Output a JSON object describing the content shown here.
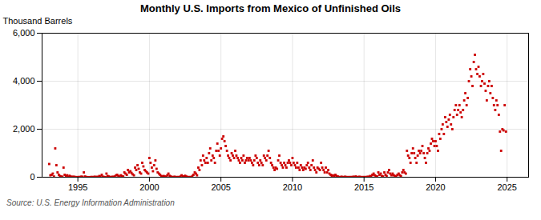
{
  "chart_data": {
    "type": "scatter",
    "title": "Monthly U.S. Imports from Mexico of Unfinished Oils",
    "ylabel": "Thousand Barrels",
    "source": "Source: U.S. Energy Information Administration",
    "color": "#CC0000",
    "marker": "square",
    "grid": true,
    "xlim": [
      1992.5,
      2026.5
    ],
    "xticks": [
      1995,
      2000,
      2005,
      2010,
      2015,
      2020,
      2025
    ],
    "ylim": [
      0,
      6000
    ],
    "yticks": [
      0,
      {
        "value": 2000,
        "label": "2,000"
      },
      {
        "value": 4000,
        "label": "4,000"
      },
      {
        "value": 6000,
        "label": "6,000"
      }
    ],
    "x": [
      1993.0,
      1993.08,
      1993.17,
      1993.25,
      1993.33,
      1993.42,
      1993.5,
      1993.58,
      1993.67,
      1993.75,
      1993.83,
      1993.92,
      1994.0,
      1994.08,
      1994.17,
      1994.25,
      1994.33,
      1994.42,
      1994.5,
      1994.58,
      1994.67,
      1994.75,
      1994.83,
      1994.92,
      1995.0,
      1995.08,
      1995.17,
      1995.25,
      1995.33,
      1995.42,
      1995.5,
      1995.58,
      1995.67,
      1995.75,
      1995.83,
      1995.92,
      1996.0,
      1996.08,
      1996.17,
      1996.25,
      1996.33,
      1996.42,
      1996.5,
      1996.58,
      1996.67,
      1996.75,
      1996.83,
      1996.92,
      1997.0,
      1997.08,
      1997.17,
      1997.25,
      1997.33,
      1997.42,
      1997.5,
      1997.58,
      1997.67,
      1997.75,
      1997.83,
      1997.92,
      1998.0,
      1998.08,
      1998.17,
      1998.25,
      1998.33,
      1998.42,
      1998.5,
      1998.58,
      1998.67,
      1998.75,
      1998.83,
      1998.92,
      1999.0,
      1999.08,
      1999.17,
      1999.25,
      1999.33,
      1999.42,
      1999.5,
      1999.58,
      1999.67,
      1999.75,
      1999.83,
      1999.92,
      2000.0,
      2000.08,
      2000.17,
      2000.25,
      2000.33,
      2000.42,
      2000.5,
      2000.58,
      2000.67,
      2000.75,
      2000.83,
      2000.92,
      2001.0,
      2001.08,
      2001.17,
      2001.25,
      2001.33,
      2001.42,
      2001.5,
      2001.58,
      2001.67,
      2001.75,
      2001.83,
      2001.92,
      2002.0,
      2002.08,
      2002.17,
      2002.25,
      2002.33,
      2002.42,
      2002.5,
      2002.58,
      2002.67,
      2002.75,
      2002.83,
      2002.92,
      2003.0,
      2003.08,
      2003.17,
      2003.25,
      2003.33,
      2003.42,
      2003.5,
      2003.58,
      2003.67,
      2003.75,
      2003.83,
      2003.92,
      2004.0,
      2004.08,
      2004.17,
      2004.25,
      2004.33,
      2004.42,
      2004.5,
      2004.58,
      2004.67,
      2004.75,
      2004.83,
      2004.92,
      2005.0,
      2005.08,
      2005.17,
      2005.25,
      2005.33,
      2005.42,
      2005.5,
      2005.58,
      2005.67,
      2005.75,
      2005.83,
      2005.92,
      2006.0,
      2006.08,
      2006.17,
      2006.25,
      2006.33,
      2006.42,
      2006.5,
      2006.58,
      2006.67,
      2006.75,
      2006.83,
      2006.92,
      2007.0,
      2007.08,
      2007.17,
      2007.25,
      2007.33,
      2007.42,
      2007.5,
      2007.58,
      2007.67,
      2007.75,
      2007.83,
      2007.92,
      2008.0,
      2008.08,
      2008.17,
      2008.25,
      2008.33,
      2008.42,
      2008.5,
      2008.58,
      2008.67,
      2008.75,
      2008.83,
      2008.92,
      2009.0,
      2009.08,
      2009.17,
      2009.25,
      2009.33,
      2009.42,
      2009.5,
      2009.58,
      2009.67,
      2009.75,
      2009.83,
      2009.92,
      2010.0,
      2010.08,
      2010.17,
      2010.25,
      2010.33,
      2010.42,
      2010.5,
      2010.58,
      2010.67,
      2010.75,
      2010.83,
      2010.92,
      2011.0,
      2011.08,
      2011.17,
      2011.25,
      2011.33,
      2011.42,
      2011.5,
      2011.58,
      2011.67,
      2011.75,
      2011.83,
      2011.92,
      2012.0,
      2012.08,
      2012.17,
      2012.25,
      2012.33,
      2012.42,
      2012.5,
      2012.58,
      2012.67,
      2012.75,
      2012.83,
      2012.92,
      2013.0,
      2013.08,
      2013.17,
      2013.25,
      2013.33,
      2013.42,
      2013.5,
      2013.58,
      2013.67,
      2013.75,
      2013.83,
      2013.92,
      2014.0,
      2014.08,
      2014.17,
      2014.25,
      2014.33,
      2014.42,
      2014.5,
      2014.58,
      2014.67,
      2014.75,
      2014.83,
      2014.92,
      2015.0,
      2015.08,
      2015.17,
      2015.25,
      2015.33,
      2015.42,
      2015.5,
      2015.58,
      2015.67,
      2015.75,
      2015.83,
      2015.92,
      2016.0,
      2016.08,
      2016.17,
      2016.25,
      2016.33,
      2016.42,
      2016.5,
      2016.58,
      2016.67,
      2016.75,
      2016.83,
      2016.92,
      2017.0,
      2017.08,
      2017.17,
      2017.25,
      2017.33,
      2017.42,
      2017.5,
      2017.58,
      2017.67,
      2017.75,
      2017.83,
      2017.92,
      2018.0,
      2018.08,
      2018.17,
      2018.25,
      2018.33,
      2018.42,
      2018.5,
      2018.58,
      2018.67,
      2018.75,
      2018.83,
      2018.92,
      2019.0,
      2019.08,
      2019.17,
      2019.25,
      2019.33,
      2019.42,
      2019.5,
      2019.58,
      2019.67,
      2019.75,
      2019.83,
      2019.92,
      2020.0,
      2020.08,
      2020.17,
      2020.25,
      2020.33,
      2020.42,
      2020.5,
      2020.58,
      2020.67,
      2020.75,
      2020.83,
      2020.92,
      2021.0,
      2021.08,
      2021.17,
      2021.25,
      2021.33,
      2021.42,
      2021.5,
      2021.58,
      2021.67,
      2021.75,
      2021.83,
      2021.92,
      2022.0,
      2022.08,
      2022.17,
      2022.25,
      2022.33,
      2022.42,
      2022.5,
      2022.58,
      2022.67,
      2022.75,
      2022.83,
      2022.92,
      2023.0,
      2023.08,
      2023.17,
      2023.25,
      2023.33,
      2023.42,
      2023.5,
      2023.58,
      2023.67,
      2023.75,
      2023.83,
      2023.92,
      2024.0,
      2024.08,
      2024.17,
      2024.25,
      2024.33,
      2024.42,
      2024.5,
      2024.58,
      2024.67,
      2024.75,
      2024.83,
      2024.92
    ],
    "values": [
      550,
      80,
      100,
      150,
      30,
      1200,
      500,
      200,
      100,
      50,
      30,
      20,
      400,
      100,
      50,
      80,
      20,
      60,
      30,
      10,
      20,
      15,
      8,
      5,
      5,
      10,
      8,
      25,
      15,
      200,
      30,
      10,
      5,
      3,
      5,
      8,
      10,
      5,
      20,
      8,
      15,
      10,
      50,
      30,
      100,
      20,
      10,
      5,
      150,
      50,
      30,
      10,
      5,
      20,
      10,
      30,
      80,
      100,
      50,
      20,
      80,
      50,
      30,
      200,
      150,
      100,
      300,
      200,
      250,
      180,
      120,
      80,
      400,
      300,
      500,
      350,
      200,
      150,
      600,
      450,
      300,
      250,
      200,
      150,
      800,
      600,
      400,
      250,
      500,
      700,
      350,
      200,
      150,
      100,
      50,
      30,
      50,
      30,
      20,
      80,
      150,
      60,
      30,
      10,
      5,
      20,
      10,
      5,
      10,
      5,
      30,
      80,
      20,
      40,
      60,
      30,
      10,
      5,
      10,
      5,
      50,
      100,
      200,
      150,
      80,
      400,
      300,
      700,
      500,
      900,
      700,
      600,
      800,
      600,
      1000,
      1200,
      700,
      900,
      800,
      600,
      1100,
      1400,
      1100,
      900,
      1200,
      1600,
      1700,
      1500,
      1300,
      1100,
      900,
      800,
      700,
      1000,
      900,
      800,
      1100,
      900,
      800,
      700,
      600,
      800,
      700,
      900,
      600,
      700,
      800,
      700,
      800,
      700,
      600,
      500,
      700,
      900,
      800,
      600,
      500,
      700,
      600,
      500,
      900,
      800,
      700,
      900,
      1100,
      800,
      600,
      500,
      400,
      300,
      400,
      350,
      700,
      900,
      600,
      500,
      400,
      600,
      500,
      400,
      600,
      700,
      600,
      500,
      800,
      600,
      500,
      400,
      600,
      400,
      300,
      500,
      400,
      300,
      400,
      350,
      500,
      600,
      400,
      300,
      500,
      700,
      400,
      300,
      200,
      400,
      350,
      300,
      600,
      400,
      300,
      200,
      400,
      200,
      300,
      150,
      100,
      50,
      80,
      40,
      100,
      50,
      30,
      10,
      5,
      20,
      10,
      5,
      20,
      10,
      5,
      8,
      5,
      10,
      5,
      20,
      10,
      30,
      10,
      5,
      20,
      10,
      5,
      8,
      5,
      10,
      5,
      20,
      10,
      50,
      30,
      100,
      150,
      80,
      50,
      30,
      200,
      100,
      150,
      50,
      30,
      200,
      100,
      50,
      200,
      300,
      150,
      80,
      150,
      80,
      50,
      30,
      100,
      150,
      80,
      50,
      200,
      300,
      200,
      150,
      1100,
      900,
      800,
      600,
      1000,
      1200,
      1000,
      800,
      600,
      900,
      1100,
      1000,
      1100,
      1300,
      1000,
      800,
      600,
      1000,
      1200,
      1100,
      1400,
      1600,
      1500,
      1300,
      1500,
      1300,
      1100,
      1800,
      1600,
      2000,
      2200,
      1800,
      2500,
      2300,
      2100,
      2400,
      2600,
      2200,
      2000,
      2500,
      2800,
      3000,
      2600,
      2800,
      3000,
      2700,
      2500,
      2800,
      3200,
      3500,
      3000,
      3300,
      4000,
      4500,
      4200,
      3800,
      4800,
      5100,
      4500,
      4300,
      4600,
      4200,
      3800,
      4000,
      4300,
      3900,
      3600,
      3200,
      3800,
      4000,
      3500,
      3800,
      3300,
      3000,
      2800,
      3200,
      3000,
      2600,
      1900,
      1100,
      2000,
      1950,
      3000,
      1900
    ]
  }
}
